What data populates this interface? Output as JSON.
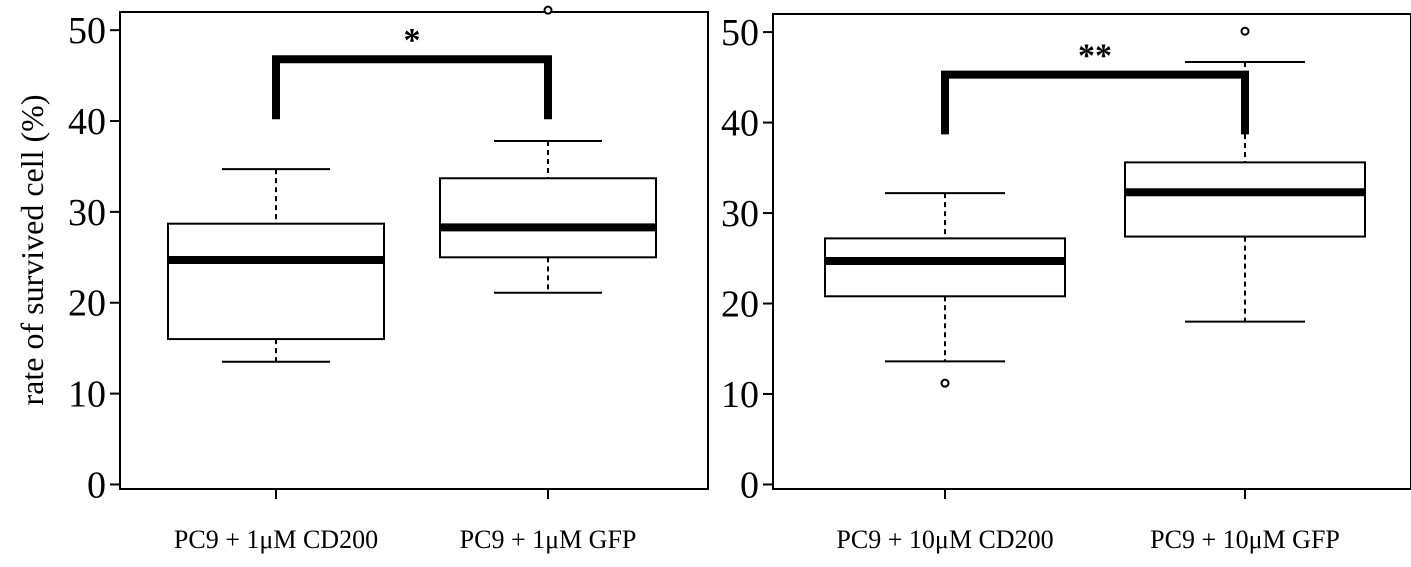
{
  "chart_data": [
    {
      "type": "boxplot",
      "ylabel": "rate of survived cell (%)",
      "ylim": [
        -0.5,
        52
      ],
      "yticks": [
        0,
        10,
        20,
        30,
        40,
        50
      ],
      "categories": [
        "PC9 + 1μM CD200",
        "PC9 + 1μM GFP"
      ],
      "boxes": [
        {
          "name": "PC9 + 1μM CD200",
          "whisker_low": 13.5,
          "q1": 16.0,
          "median": 24.7,
          "q3": 28.7,
          "whisker_high": 34.7,
          "outliers": []
        },
        {
          "name": "PC9 + 1μM GFP",
          "whisker_low": 21.1,
          "q1": 25.0,
          "median": 28.3,
          "q3": 33.7,
          "whisker_high": 37.8,
          "outliers": [
            52.2
          ]
        }
      ],
      "significance": {
        "label": "*",
        "from": 0,
        "to": 1,
        "y": 46.8,
        "drop_to": 40.2
      }
    },
    {
      "type": "boxplot",
      "ylabel": "",
      "ylim": [
        -0.5,
        52
      ],
      "yticks": [
        0,
        10,
        20,
        30,
        40,
        50
      ],
      "categories": [
        "PC9 + 10μM CD200",
        "PC9 + 10μM GFP"
      ],
      "boxes": [
        {
          "name": "PC9 + 10μM CD200",
          "whisker_low": 13.6,
          "q1": 20.8,
          "median": 24.7,
          "q3": 27.2,
          "whisker_high": 32.2,
          "outliers": [
            11.2
          ]
        },
        {
          "name": "PC9 + 10μM GFP",
          "whisker_low": 18.0,
          "q1": 27.4,
          "median": 32.3,
          "q3": 35.6,
          "whisker_high": 46.7,
          "outliers": [
            50.1
          ]
        }
      ],
      "significance": {
        "label": "**",
        "from": 0,
        "to": 1,
        "y": 45.3,
        "drop_to": 38.7
      }
    }
  ]
}
